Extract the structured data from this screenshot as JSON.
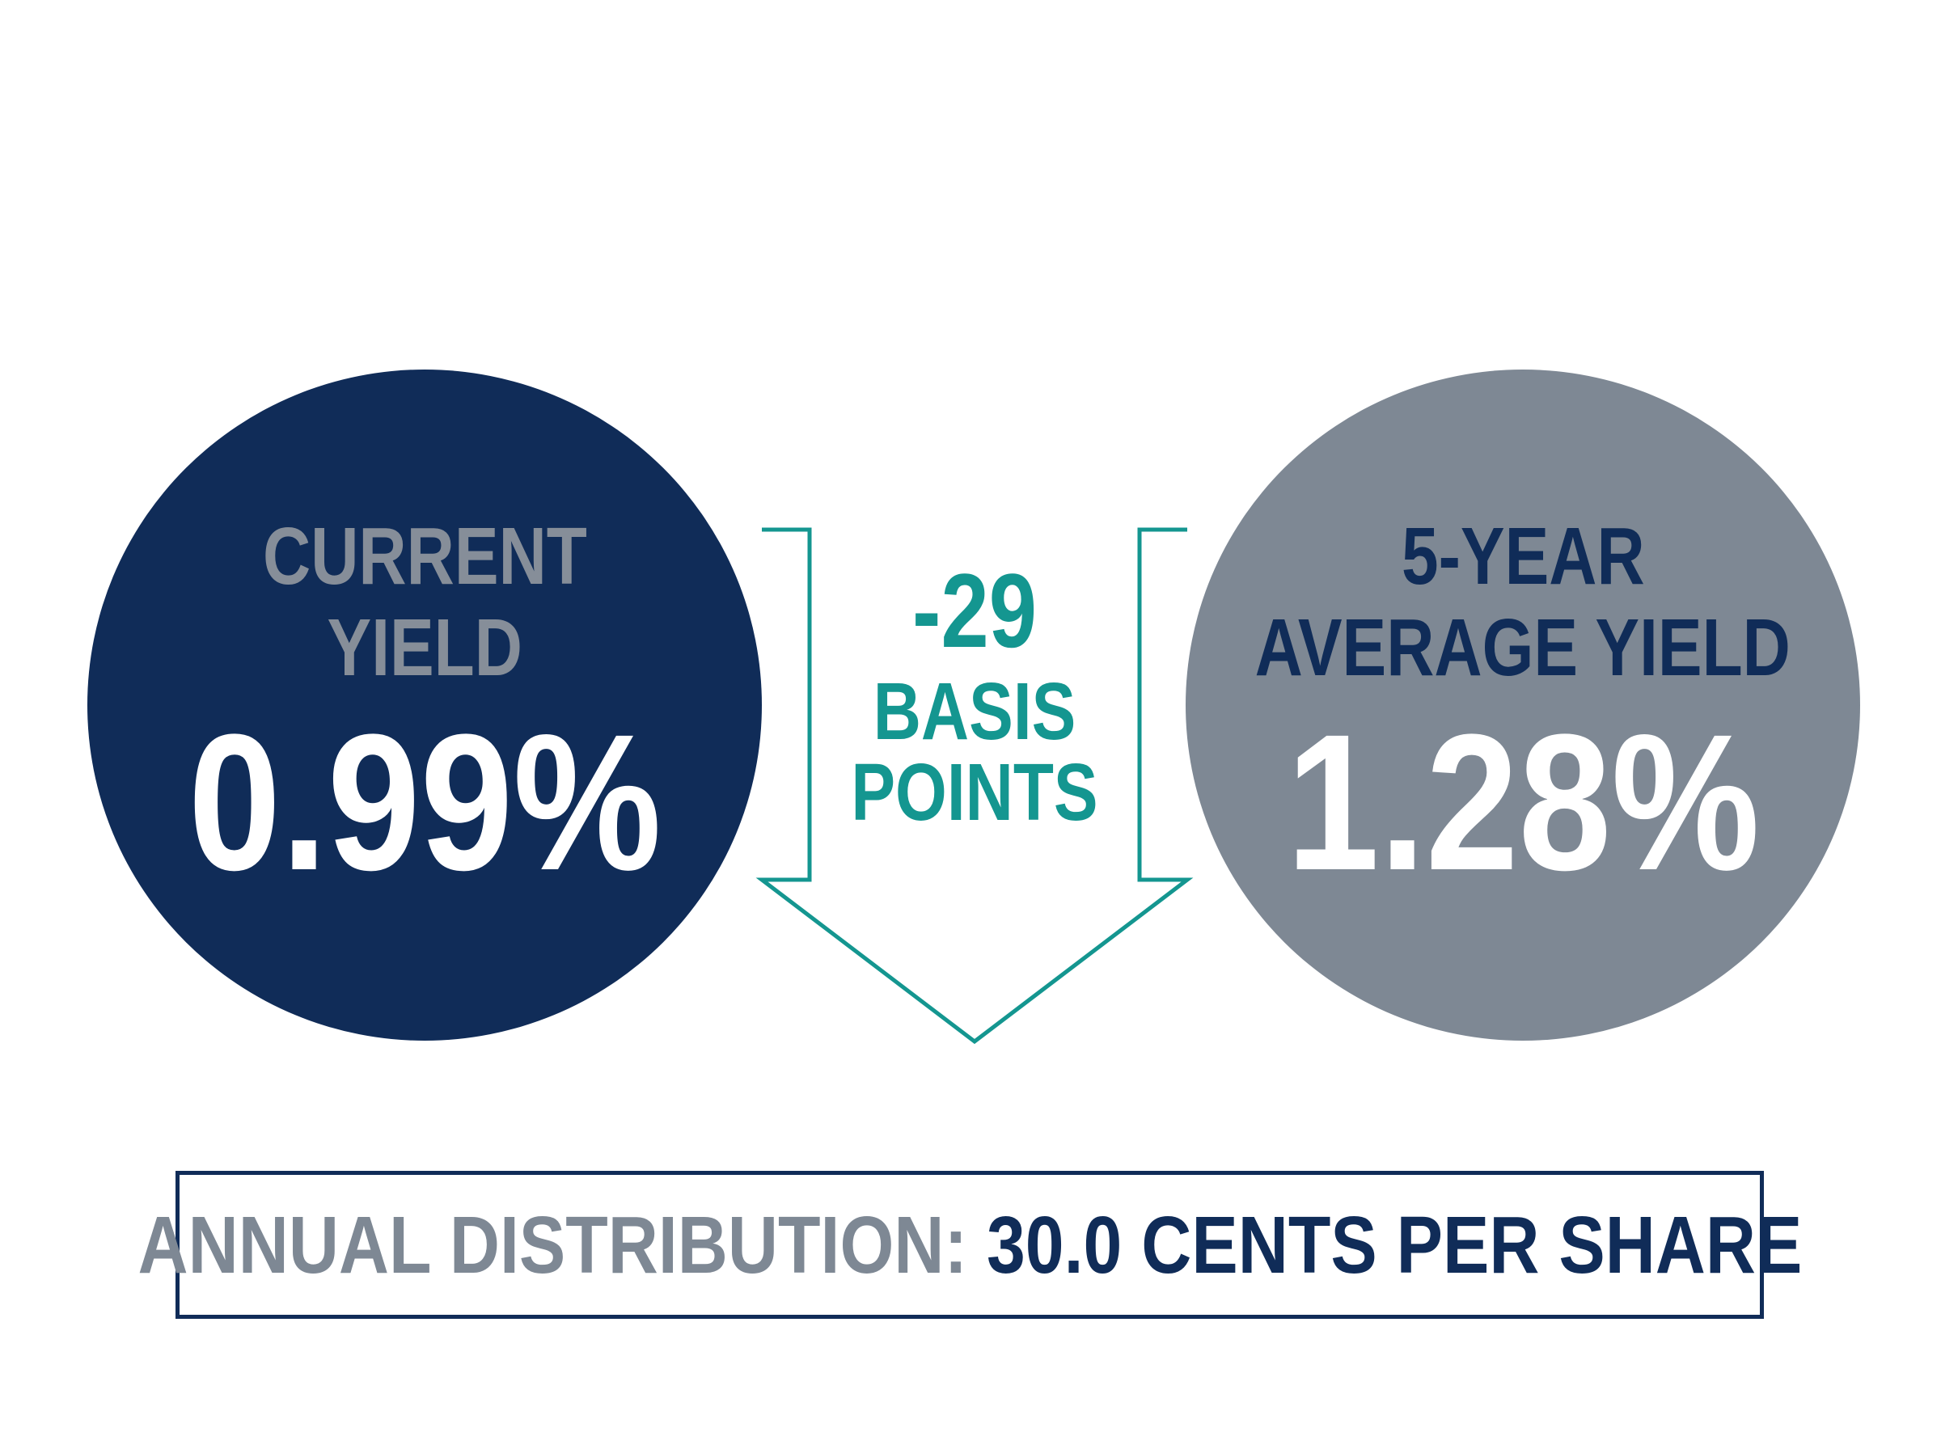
{
  "current_yield": {
    "label_line1": "CURRENT",
    "label_line2": "YIELD",
    "value": "0.99%"
  },
  "average_yield": {
    "label_line1": "5-YEAR",
    "label_line2": "AVERAGE YIELD",
    "value": "1.28%"
  },
  "change": {
    "value": "-29",
    "unit_line1": "BASIS",
    "unit_line2": "POINTS"
  },
  "distribution": {
    "label": "ANNUAL DISTRIBUTION:",
    "value": "30.0 CENTS PER SHARE"
  },
  "colors": {
    "navy": "#102c58",
    "slate_gray": "#7e8894",
    "teal": "#149690",
    "white": "#ffffff"
  }
}
